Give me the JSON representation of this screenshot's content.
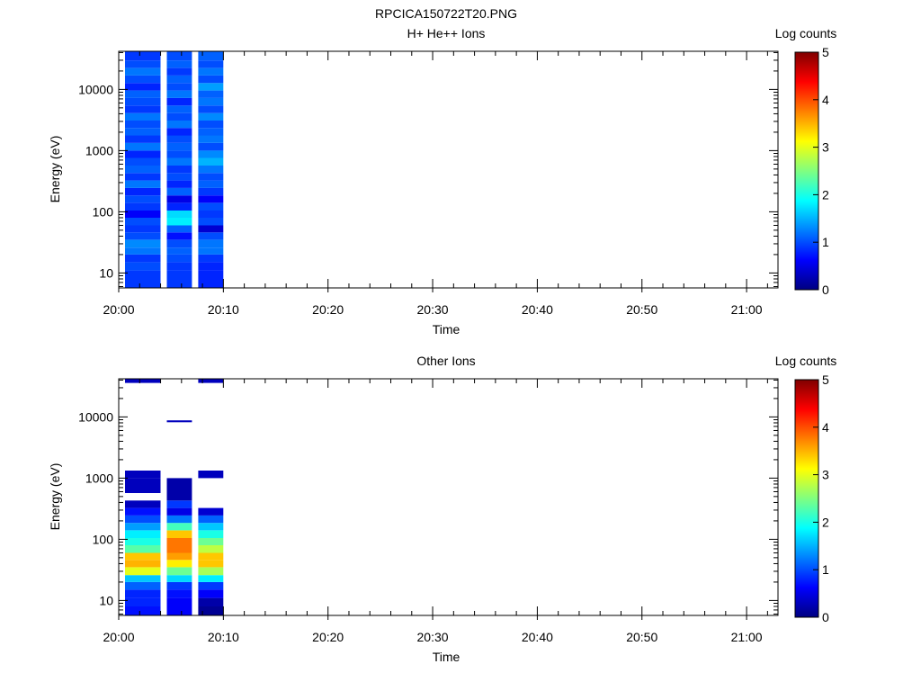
{
  "figure_title": "RPCICA150722T20.PNG",
  "colormap": [
    "#000080",
    "#0000ff",
    "#0080ff",
    "#00ffff",
    "#80ff80",
    "#ffff00",
    "#ff8000",
    "#ff0000",
    "#800000"
  ],
  "chart_data": [
    {
      "type": "heatmap",
      "title": "H+ He++ Ions",
      "xlabel": "Time",
      "ylabel": "Energy (eV)",
      "yscale": "log",
      "ylim": [
        5.7,
        42000
      ],
      "xlim": [
        "20:00",
        "21:03"
      ],
      "x_ticks": [
        "20:00",
        "20:10",
        "20:20",
        "20:30",
        "20:40",
        "20:50",
        "21:00"
      ],
      "y_ticks": [
        10,
        100,
        1000,
        10000
      ],
      "y_tick_labels": [
        "10",
        "100",
        "1000",
        "10000"
      ],
      "colorbar": {
        "label": "Log counts",
        "range": [
          0,
          5
        ],
        "ticks": [
          "0",
          "1",
          "2",
          "3",
          "4",
          "5"
        ]
      },
      "time_bins": [
        {
          "start": "20:00",
          "end": "20:04"
        },
        {
          "start": "20:04",
          "end": "20:07"
        },
        {
          "start": "20:07",
          "end": "20:10"
        }
      ],
      "energy_bins": [
        {
          "lo": 5.7,
          "hi": 8,
          "values": [
            0.9,
            0.9,
            0.8
          ]
        },
        {
          "lo": 8,
          "hi": 11,
          "values": [
            0.9,
            0.9,
            0.8
          ]
        },
        {
          "lo": 11,
          "hi": 15,
          "values": [
            1.0,
            0.9,
            0.8
          ]
        },
        {
          "lo": 15,
          "hi": 20,
          "values": [
            0.9,
            1.0,
            0.9
          ]
        },
        {
          "lo": 20,
          "hi": 26,
          "values": [
            1.2,
            1.1,
            1.2
          ]
        },
        {
          "lo": 26,
          "hi": 35,
          "values": [
            1.3,
            1.0,
            1.2
          ]
        },
        {
          "lo": 35,
          "hi": 46,
          "values": [
            1.0,
            0.7,
            1.0
          ]
        },
        {
          "lo": 46,
          "hi": 60,
          "values": [
            0.9,
            1.1,
            0.4
          ]
        },
        {
          "lo": 60,
          "hi": 80,
          "values": [
            1.0,
            1.8,
            1.0
          ]
        },
        {
          "lo": 80,
          "hi": 105,
          "values": [
            0.6,
            1.7,
            0.9
          ]
        },
        {
          "lo": 105,
          "hi": 140,
          "values": [
            0.9,
            0.8,
            1.0
          ]
        },
        {
          "lo": 140,
          "hi": 185,
          "values": [
            1.0,
            0.5,
            0.6
          ]
        },
        {
          "lo": 185,
          "hi": 245,
          "values": [
            0.8,
            1.1,
            0.9
          ]
        },
        {
          "lo": 245,
          "hi": 325,
          "values": [
            1.2,
            0.8,
            1.1
          ]
        },
        {
          "lo": 325,
          "hi": 430,
          "values": [
            0.9,
            1.0,
            1.0
          ]
        },
        {
          "lo": 430,
          "hi": 570,
          "values": [
            1.1,
            0.9,
            1.2
          ]
        },
        {
          "lo": 570,
          "hi": 760,
          "values": [
            1.0,
            1.2,
            1.5
          ]
        },
        {
          "lo": 760,
          "hi": 1000,
          "values": [
            0.8,
            1.0,
            1.3
          ]
        },
        {
          "lo": 1000,
          "hi": 1330,
          "values": [
            1.2,
            1.1,
            1.0
          ]
        },
        {
          "lo": 1330,
          "hi": 1770,
          "values": [
            0.9,
            1.0,
            1.2
          ]
        },
        {
          "lo": 1770,
          "hi": 2350,
          "values": [
            1.1,
            0.8,
            1.1
          ]
        },
        {
          "lo": 2350,
          "hi": 3100,
          "values": [
            1.0,
            1.2,
            1.0
          ]
        },
        {
          "lo": 3100,
          "hi": 4100,
          "values": [
            1.2,
            1.0,
            1.3
          ]
        },
        {
          "lo": 4100,
          "hi": 5450,
          "values": [
            0.9,
            1.1,
            1.0
          ]
        },
        {
          "lo": 5450,
          "hi": 7250,
          "values": [
            1.0,
            0.8,
            1.2
          ]
        },
        {
          "lo": 7250,
          "hi": 9600,
          "values": [
            1.1,
            1.2,
            1.1
          ]
        },
        {
          "lo": 9600,
          "hi": 12700,
          "values": [
            0.8,
            1.0,
            1.4
          ]
        },
        {
          "lo": 12700,
          "hi": 16900,
          "values": [
            1.0,
            1.1,
            1.0
          ]
        },
        {
          "lo": 16900,
          "hi": 22400,
          "values": [
            1.2,
            0.9,
            1.2
          ]
        },
        {
          "lo": 22400,
          "hi": 29700,
          "values": [
            1.0,
            1.1,
            1.0
          ]
        },
        {
          "lo": 29700,
          "hi": 42000,
          "values": [
            0.9,
            1.0,
            1.1
          ]
        }
      ]
    },
    {
      "type": "heatmap",
      "title": "Other Ions",
      "xlabel": "Time",
      "ylabel": "Energy (eV)",
      "yscale": "log",
      "ylim": [
        5.7,
        42000
      ],
      "xlim": [
        "20:00",
        "21:03"
      ],
      "x_ticks": [
        "20:00",
        "20:10",
        "20:20",
        "20:30",
        "20:40",
        "20:50",
        "21:00"
      ],
      "y_ticks": [
        10,
        100,
        1000,
        10000
      ],
      "y_tick_labels": [
        "10",
        "100",
        "1000",
        "10000"
      ],
      "colorbar": {
        "label": "Log counts",
        "range": [
          0,
          5
        ],
        "ticks": [
          "0",
          "1",
          "2",
          "3",
          "4",
          "5"
        ]
      },
      "time_bins": [
        {
          "start": "20:00",
          "end": "20:04"
        },
        {
          "start": "20:04",
          "end": "20:07"
        },
        {
          "start": "20:07",
          "end": "20:10"
        }
      ],
      "energy_bins": [
        {
          "lo": 5.7,
          "hi": 8,
          "values": [
            0.7,
            0.6,
            0.1
          ]
        },
        {
          "lo": 8,
          "hi": 11,
          "values": [
            0.8,
            0.6,
            0.2
          ]
        },
        {
          "lo": 11,
          "hi": 15,
          "values": [
            0.8,
            0.7,
            0.6
          ]
        },
        {
          "lo": 15,
          "hi": 20,
          "values": [
            1.1,
            0.9,
            0.9
          ]
        },
        {
          "lo": 20,
          "hi": 26,
          "values": [
            1.6,
            1.7,
            1.8
          ]
        },
        {
          "lo": 26,
          "hi": 35,
          "values": [
            3.0,
            2.4,
            2.7
          ]
        },
        {
          "lo": 35,
          "hi": 46,
          "values": [
            3.5,
            3.2,
            3.4
          ]
        },
        {
          "lo": 46,
          "hi": 60,
          "values": [
            3.4,
            3.6,
            3.4
          ]
        },
        {
          "lo": 60,
          "hi": 80,
          "values": [
            2.3,
            3.8,
            2.8
          ]
        },
        {
          "lo": 80,
          "hi": 105,
          "values": [
            2.0,
            3.8,
            2.4
          ]
        },
        {
          "lo": 105,
          "hi": 140,
          "values": [
            1.8,
            3.4,
            2.0
          ]
        },
        {
          "lo": 140,
          "hi": 185,
          "values": [
            1.4,
            2.2,
            1.6
          ]
        },
        {
          "lo": 185,
          "hi": 245,
          "values": [
            1.0,
            1.2,
            1.1
          ]
        },
        {
          "lo": 245,
          "hi": 325,
          "values": [
            0.7,
            0.5,
            0.4
          ]
        },
        {
          "lo": 325,
          "hi": 430,
          "values": [
            0.3,
            0.9,
            null
          ]
        },
        {
          "lo": 430,
          "hi": 570,
          "values": [
            null,
            0.2,
            null
          ]
        },
        {
          "lo": 570,
          "hi": 760,
          "values": [
            0.3,
            0.2,
            null
          ]
        },
        {
          "lo": 760,
          "hi": 1000,
          "values": [
            0.3,
            0.2,
            null
          ]
        },
        {
          "lo": 1000,
          "hi": 1330,
          "values": [
            0.3,
            null,
            0.3
          ]
        },
        {
          "lo": 8200,
          "hi": 8800,
          "values": [
            null,
            0.3,
            null
          ]
        },
        {
          "lo": 36000,
          "hi": 42000,
          "values": [
            0.3,
            null,
            0.3
          ]
        }
      ]
    }
  ]
}
